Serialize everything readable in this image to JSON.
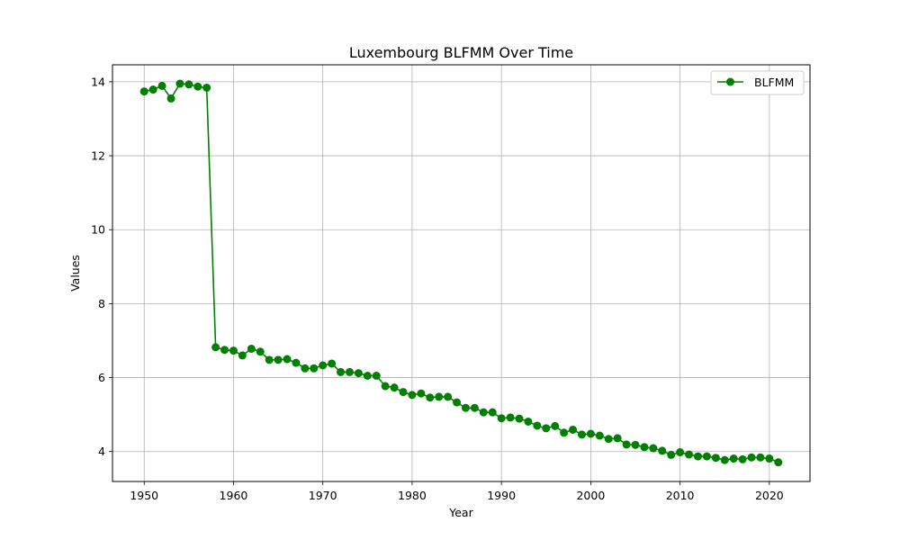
{
  "chart_data": {
    "type": "line",
    "title": "Luxembourg BLFMM Over Time",
    "xlabel": "Year",
    "ylabel": "Values",
    "xlim": [
      1946.45,
      2024.55
    ],
    "ylim": [
      3.19,
      14.46
    ],
    "xticks": [
      1950,
      1960,
      1970,
      1980,
      1990,
      2000,
      2010,
      2020
    ],
    "yticks": [
      4,
      6,
      8,
      10,
      12,
      14
    ],
    "grid": true,
    "legend_position": "top-right",
    "series": [
      {
        "name": "BLFMM",
        "color": "#008000",
        "marker": "circle",
        "x": [
          1950,
          1951,
          1952,
          1953,
          1954,
          1955,
          1956,
          1957,
          1958,
          1959,
          1960,
          1961,
          1962,
          1963,
          1964,
          1965,
          1966,
          1967,
          1968,
          1969,
          1970,
          1971,
          1972,
          1973,
          1974,
          1975,
          1976,
          1977,
          1978,
          1979,
          1980,
          1981,
          1982,
          1983,
          1984,
          1985,
          1986,
          1987,
          1988,
          1989,
          1990,
          1991,
          1992,
          1993,
          1994,
          1995,
          1996,
          1997,
          1998,
          1999,
          2000,
          2001,
          2002,
          2003,
          2004,
          2005,
          2006,
          2007,
          2008,
          2009,
          2010,
          2011,
          2012,
          2013,
          2014,
          2015,
          2016,
          2017,
          2018,
          2019,
          2020,
          2021
        ],
        "y": [
          13.74,
          13.79,
          13.89,
          13.55,
          13.95,
          13.93,
          13.87,
          13.84,
          6.82,
          6.75,
          6.73,
          6.6,
          6.78,
          6.7,
          6.48,
          6.48,
          6.5,
          6.4,
          6.25,
          6.25,
          6.33,
          6.38,
          6.15,
          6.15,
          6.12,
          6.05,
          6.05,
          5.77,
          5.73,
          5.61,
          5.53,
          5.57,
          5.46,
          5.48,
          5.48,
          5.33,
          5.18,
          5.18,
          5.06,
          5.06,
          4.9,
          4.92,
          4.89,
          4.81,
          4.7,
          4.63,
          4.69,
          4.51,
          4.59,
          4.46,
          4.48,
          4.43,
          4.34,
          4.36,
          4.19,
          4.18,
          4.12,
          4.09,
          4.02,
          3.91,
          3.98,
          3.92,
          3.87,
          3.87,
          3.83,
          3.77,
          3.81,
          3.79,
          3.84,
          3.84,
          3.81,
          3.71
        ]
      }
    ]
  }
}
